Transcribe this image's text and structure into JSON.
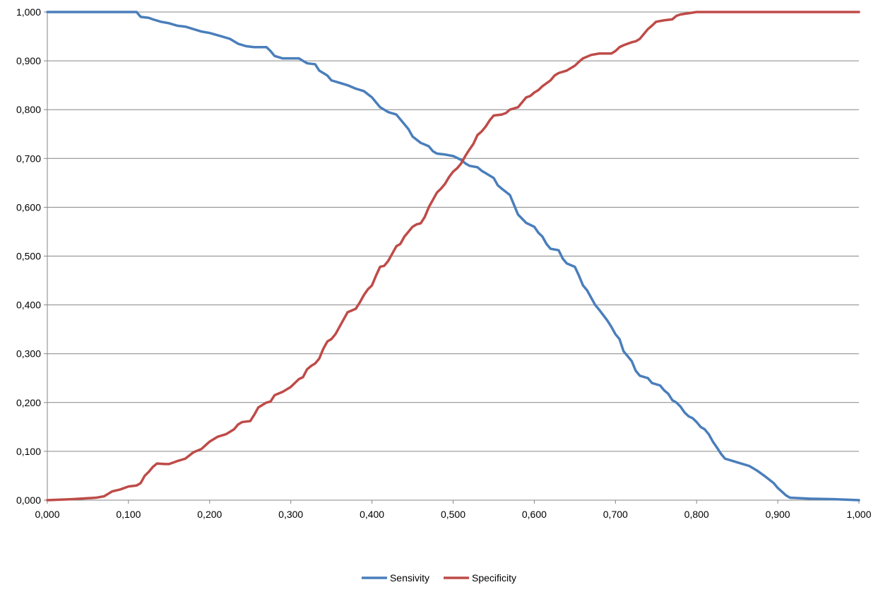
{
  "chart_data": {
    "type": "line",
    "title": "",
    "xlabel": "",
    "ylabel": "",
    "xlim": [
      0,
      1
    ],
    "ylim": [
      0,
      1
    ],
    "x_tick_values": [
      0,
      0.1,
      0.2,
      0.3,
      0.4,
      0.5,
      0.6,
      0.7,
      0.8,
      0.9,
      1.0
    ],
    "x_tick_labels": [
      "0,000",
      "0,100",
      "0,200",
      "0,300",
      "0,400",
      "0,500",
      "0,600",
      "0,700",
      "0,800",
      "0,900",
      "1,000"
    ],
    "y_tick_values": [
      0,
      0.1,
      0.2,
      0.3,
      0.4,
      0.5,
      0.6,
      0.7,
      0.8,
      0.9,
      1.0
    ],
    "y_tick_labels": [
      "0,000",
      "0,100",
      "0,200",
      "0,300",
      "0,400",
      "0,500",
      "0,600",
      "0,700",
      "0,800",
      "0,900",
      "1,000"
    ],
    "grid": "horizontal",
    "legend_position": "bottom",
    "series": [
      {
        "name": "Sensivity",
        "color": "#4a7ebb",
        "points": [
          [
            0.0,
            1.0
          ],
          [
            0.05,
            1.0
          ],
          [
            0.1,
            1.0
          ],
          [
            0.11,
            1.0
          ],
          [
            0.115,
            0.99
          ],
          [
            0.125,
            0.988
          ],
          [
            0.13,
            0.985
          ],
          [
            0.14,
            0.98
          ],
          [
            0.15,
            0.977
          ],
          [
            0.16,
            0.972
          ],
          [
            0.17,
            0.97
          ],
          [
            0.18,
            0.965
          ],
          [
            0.19,
            0.96
          ],
          [
            0.2,
            0.957
          ],
          [
            0.215,
            0.95
          ],
          [
            0.225,
            0.945
          ],
          [
            0.235,
            0.935
          ],
          [
            0.245,
            0.93
          ],
          [
            0.255,
            0.928
          ],
          [
            0.27,
            0.928
          ],
          [
            0.275,
            0.92
          ],
          [
            0.28,
            0.91
          ],
          [
            0.29,
            0.905
          ],
          [
            0.31,
            0.905
          ],
          [
            0.315,
            0.9
          ],
          [
            0.32,
            0.895
          ],
          [
            0.33,
            0.893
          ],
          [
            0.335,
            0.88
          ],
          [
            0.345,
            0.87
          ],
          [
            0.35,
            0.86
          ],
          [
            0.36,
            0.855
          ],
          [
            0.37,
            0.85
          ],
          [
            0.38,
            0.843
          ],
          [
            0.39,
            0.838
          ],
          [
            0.4,
            0.825
          ],
          [
            0.405,
            0.815
          ],
          [
            0.41,
            0.805
          ],
          [
            0.42,
            0.795
          ],
          [
            0.43,
            0.79
          ],
          [
            0.435,
            0.78
          ],
          [
            0.44,
            0.77
          ],
          [
            0.445,
            0.76
          ],
          [
            0.45,
            0.745
          ],
          [
            0.46,
            0.732
          ],
          [
            0.47,
            0.725
          ],
          [
            0.475,
            0.715
          ],
          [
            0.48,
            0.71
          ],
          [
            0.49,
            0.708
          ],
          [
            0.5,
            0.705
          ],
          [
            0.51,
            0.697
          ],
          [
            0.515,
            0.69
          ],
          [
            0.52,
            0.685
          ],
          [
            0.53,
            0.682
          ],
          [
            0.535,
            0.675
          ],
          [
            0.54,
            0.67
          ],
          [
            0.55,
            0.66
          ],
          [
            0.555,
            0.645
          ],
          [
            0.56,
            0.638
          ],
          [
            0.57,
            0.625
          ],
          [
            0.575,
            0.605
          ],
          [
            0.58,
            0.585
          ],
          [
            0.59,
            0.568
          ],
          [
            0.6,
            0.56
          ],
          [
            0.605,
            0.548
          ],
          [
            0.61,
            0.54
          ],
          [
            0.615,
            0.525
          ],
          [
            0.62,
            0.515
          ],
          [
            0.63,
            0.512
          ],
          [
            0.635,
            0.495
          ],
          [
            0.64,
            0.485
          ],
          [
            0.65,
            0.478
          ],
          [
            0.655,
            0.46
          ],
          [
            0.66,
            0.44
          ],
          [
            0.665,
            0.43
          ],
          [
            0.67,
            0.415
          ],
          [
            0.675,
            0.4
          ],
          [
            0.68,
            0.39
          ],
          [
            0.69,
            0.368
          ],
          [
            0.695,
            0.355
          ],
          [
            0.7,
            0.34
          ],
          [
            0.705,
            0.33
          ],
          [
            0.71,
            0.305
          ],
          [
            0.715,
            0.295
          ],
          [
            0.72,
            0.285
          ],
          [
            0.725,
            0.265
          ],
          [
            0.73,
            0.255
          ],
          [
            0.74,
            0.25
          ],
          [
            0.745,
            0.24
          ],
          [
            0.755,
            0.235
          ],
          [
            0.76,
            0.225
          ],
          [
            0.765,
            0.218
          ],
          [
            0.77,
            0.205
          ],
          [
            0.775,
            0.2
          ],
          [
            0.78,
            0.192
          ],
          [
            0.785,
            0.18
          ],
          [
            0.79,
            0.172
          ],
          [
            0.795,
            0.168
          ],
          [
            0.8,
            0.16
          ],
          [
            0.805,
            0.15
          ],
          [
            0.81,
            0.145
          ],
          [
            0.815,
            0.135
          ],
          [
            0.82,
            0.12
          ],
          [
            0.825,
            0.108
          ],
          [
            0.83,
            0.095
          ],
          [
            0.835,
            0.085
          ],
          [
            0.845,
            0.08
          ],
          [
            0.855,
            0.075
          ],
          [
            0.865,
            0.07
          ],
          [
            0.875,
            0.06
          ],
          [
            0.885,
            0.048
          ],
          [
            0.895,
            0.035
          ],
          [
            0.9,
            0.025
          ],
          [
            0.91,
            0.01
          ],
          [
            0.915,
            0.005
          ],
          [
            0.94,
            0.003
          ],
          [
            0.97,
            0.002
          ],
          [
            1.0,
            0.0
          ]
        ]
      },
      {
        "name": "Specificity",
        "color": "#be4b48",
        "points": [
          [
            0.0,
            0.0
          ],
          [
            0.03,
            0.002
          ],
          [
            0.06,
            0.005
          ],
          [
            0.07,
            0.008
          ],
          [
            0.08,
            0.018
          ],
          [
            0.09,
            0.022
          ],
          [
            0.1,
            0.028
          ],
          [
            0.11,
            0.03
          ],
          [
            0.115,
            0.035
          ],
          [
            0.12,
            0.05
          ],
          [
            0.125,
            0.058
          ],
          [
            0.13,
            0.068
          ],
          [
            0.135,
            0.075
          ],
          [
            0.145,
            0.074
          ],
          [
            0.15,
            0.074
          ],
          [
            0.16,
            0.08
          ],
          [
            0.17,
            0.085
          ],
          [
            0.18,
            0.098
          ],
          [
            0.19,
            0.105
          ],
          [
            0.2,
            0.12
          ],
          [
            0.21,
            0.13
          ],
          [
            0.22,
            0.135
          ],
          [
            0.23,
            0.145
          ],
          [
            0.235,
            0.155
          ],
          [
            0.24,
            0.16
          ],
          [
            0.25,
            0.162
          ],
          [
            0.255,
            0.175
          ],
          [
            0.26,
            0.19
          ],
          [
            0.27,
            0.2
          ],
          [
            0.275,
            0.202
          ],
          [
            0.28,
            0.215
          ],
          [
            0.29,
            0.222
          ],
          [
            0.3,
            0.232
          ],
          [
            0.305,
            0.24
          ],
          [
            0.31,
            0.248
          ],
          [
            0.315,
            0.252
          ],
          [
            0.32,
            0.268
          ],
          [
            0.325,
            0.275
          ],
          [
            0.33,
            0.28
          ],
          [
            0.335,
            0.29
          ],
          [
            0.34,
            0.31
          ],
          [
            0.345,
            0.325
          ],
          [
            0.35,
            0.33
          ],
          [
            0.355,
            0.34
          ],
          [
            0.36,
            0.355
          ],
          [
            0.365,
            0.37
          ],
          [
            0.37,
            0.385
          ],
          [
            0.38,
            0.392
          ],
          [
            0.385,
            0.405
          ],
          [
            0.39,
            0.42
          ],
          [
            0.395,
            0.432
          ],
          [
            0.4,
            0.44
          ],
          [
            0.405,
            0.46
          ],
          [
            0.41,
            0.478
          ],
          [
            0.415,
            0.48
          ],
          [
            0.42,
            0.49
          ],
          [
            0.425,
            0.505
          ],
          [
            0.43,
            0.52
          ],
          [
            0.435,
            0.525
          ],
          [
            0.44,
            0.54
          ],
          [
            0.445,
            0.55
          ],
          [
            0.45,
            0.56
          ],
          [
            0.455,
            0.565
          ],
          [
            0.46,
            0.567
          ],
          [
            0.465,
            0.58
          ],
          [
            0.47,
            0.6
          ],
          [
            0.475,
            0.615
          ],
          [
            0.48,
            0.63
          ],
          [
            0.485,
            0.638
          ],
          [
            0.49,
            0.648
          ],
          [
            0.495,
            0.662
          ],
          [
            0.5,
            0.673
          ],
          [
            0.505,
            0.68
          ],
          [
            0.51,
            0.69
          ],
          [
            0.515,
            0.705
          ],
          [
            0.52,
            0.718
          ],
          [
            0.525,
            0.73
          ],
          [
            0.53,
            0.748
          ],
          [
            0.535,
            0.755
          ],
          [
            0.54,
            0.765
          ],
          [
            0.545,
            0.778
          ],
          [
            0.55,
            0.788
          ],
          [
            0.56,
            0.79
          ],
          [
            0.565,
            0.793
          ],
          [
            0.57,
            0.8
          ],
          [
            0.58,
            0.805
          ],
          [
            0.585,
            0.815
          ],
          [
            0.59,
            0.825
          ],
          [
            0.595,
            0.828
          ],
          [
            0.6,
            0.835
          ],
          [
            0.605,
            0.84
          ],
          [
            0.61,
            0.848
          ],
          [
            0.62,
            0.86
          ],
          [
            0.625,
            0.87
          ],
          [
            0.63,
            0.875
          ],
          [
            0.64,
            0.88
          ],
          [
            0.65,
            0.89
          ],
          [
            0.655,
            0.898
          ],
          [
            0.66,
            0.905
          ],
          [
            0.67,
            0.912
          ],
          [
            0.68,
            0.915
          ],
          [
            0.695,
            0.915
          ],
          [
            0.7,
            0.92
          ],
          [
            0.705,
            0.928
          ],
          [
            0.71,
            0.932
          ],
          [
            0.72,
            0.938
          ],
          [
            0.725,
            0.94
          ],
          [
            0.73,
            0.945
          ],
          [
            0.735,
            0.955
          ],
          [
            0.74,
            0.965
          ],
          [
            0.745,
            0.972
          ],
          [
            0.75,
            0.98
          ],
          [
            0.76,
            0.983
          ],
          [
            0.77,
            0.985
          ],
          [
            0.775,
            0.992
          ],
          [
            0.78,
            0.995
          ],
          [
            0.8,
            1.0
          ],
          [
            0.85,
            1.0
          ],
          [
            0.9,
            1.0
          ],
          [
            1.0,
            1.0
          ]
        ]
      }
    ]
  }
}
